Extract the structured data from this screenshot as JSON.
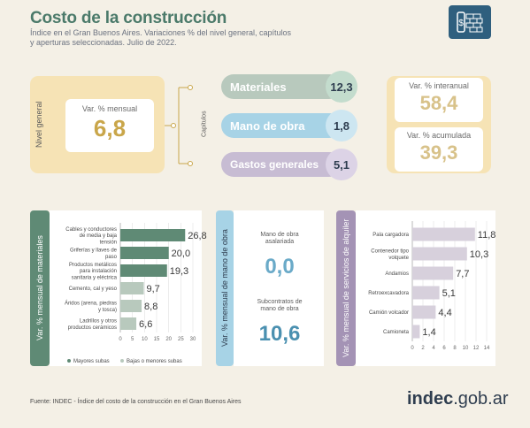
{
  "header": {
    "title": "Costo de la construcción",
    "subtitle": "Índice en el Gran Buenos Aires. Variaciones % del nivel general, capítulos y aperturas seleccionadas. Julio de 2022."
  },
  "nivel_general": {
    "side_label": "Nivel general",
    "box_label": "Var. % mensual",
    "value": "6,8"
  },
  "capitulos": {
    "side_label": "Capítulos",
    "items": [
      {
        "label": "Materiales",
        "value": "12,3"
      },
      {
        "label": "Mano de obra",
        "value": "1,8"
      },
      {
        "label": "Gastos generales",
        "value": "5,1"
      }
    ]
  },
  "interanual": {
    "label": "Var. % interanual",
    "value": "58,4"
  },
  "acumulada": {
    "label": "Var. % acumulada",
    "value": "39,3"
  },
  "mano_obra": {
    "side_label": "Var. % mensual de mano de obra",
    "asalariada_label": "Mano de obra asalariada",
    "asalariada_value": "0,0",
    "subcontratos_label": "Subcontratos de mano de obra",
    "subcontratos_value": "10,6"
  },
  "colors": {
    "green_dark": "#5f8a75",
    "green_light": "#b8c9bd",
    "blue": "#a7d3e6",
    "purple": "#a493b5",
    "purple_light": "#d7d0dc",
    "yellow": "#f6e3b5",
    "circle_green": "#c3dccd",
    "circle_blue": "#cde6f1",
    "circle_purple": "#dcd3e6"
  },
  "chart_data": [
    {
      "type": "bar",
      "orientation": "horizontal",
      "side_label": "Var. % mensual de materiales",
      "categories": [
        "Cables y conductores de media y baja tensión",
        "Griferías y llaves de paso",
        "Productos metálicos para instalación sanitaria y eléctrica",
        "Cemento, cal y yeso",
        "Áridos (arena, piedras y tosca)",
        "Ladrillos y otros productos cerámicos"
      ],
      "values": [
        26.8,
        20.0,
        19.3,
        9.7,
        8.8,
        6.6
      ],
      "value_labels": [
        "26,8",
        "20,0",
        "19,3",
        "9,7",
        "8,8",
        "6,6"
      ],
      "groups": [
        "Mayores subas",
        "Mayores subas",
        "Mayores subas",
        "Bajas o menores subas",
        "Bajas o menores subas",
        "Bajas o menores subas"
      ],
      "xlim": [
        0,
        30
      ],
      "ticks": [
        "0",
        "5",
        "10",
        "15",
        "20",
        "25",
        "30"
      ],
      "legend": [
        "Mayores subas",
        "Bajas o menores subas"
      ],
      "legend_position": "bottom"
    },
    {
      "type": "bar",
      "orientation": "horizontal",
      "side_label": "Var. % mensual de servicios de alquiler",
      "categories": [
        "Pala cargadora",
        "Contenedor tipo volquete",
        "Andamios",
        "Retroexcavadora",
        "Camión volcador",
        "Camioneta"
      ],
      "values": [
        11.8,
        10.3,
        7.7,
        5.1,
        4.4,
        1.4
      ],
      "value_labels": [
        "11,8",
        "10,3",
        "7,7",
        "5,1",
        "4,4",
        "1,4"
      ],
      "xlim": [
        0,
        14
      ],
      "ticks": [
        "0",
        "2",
        "4",
        "6",
        "8",
        "10",
        "12",
        "14"
      ]
    }
  ],
  "footer": {
    "source": "Fuente: INDEC - Índice del costo de la construcción en el Gran Buenos Aires",
    "brand_bold": "indec",
    "brand_rest": ".gob.ar"
  }
}
